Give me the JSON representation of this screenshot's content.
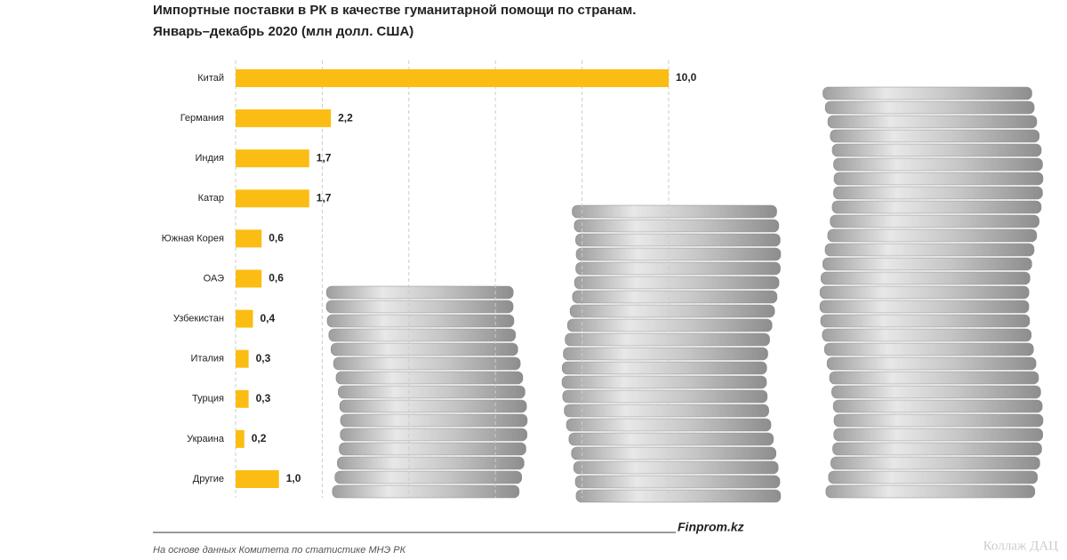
{
  "chart_data": {
    "type": "bar",
    "orientation": "horizontal",
    "title": "Импортные поставки в РК в качестве гуманитарной помощи по странам.",
    "subtitle": "Январь–декабрь 2020  (млн долл. США)",
    "categories": [
      "Китай",
      "Германия",
      "Индия",
      "Катар",
      "Южная Корея",
      "ОАЭ",
      "Узбекистан",
      "Италия",
      "Турция",
      "Украина",
      "Другие"
    ],
    "values": [
      10.0,
      2.2,
      1.7,
      1.7,
      0.6,
      0.6,
      0.4,
      0.3,
      0.3,
      0.2,
      1.0
    ],
    "value_labels": [
      "10,0",
      "2,2",
      "1,7",
      "1,7",
      "0,6",
      "0,6",
      "0,4",
      "0,3",
      "0,3",
      "0,2",
      "1,0"
    ],
    "color": "#fbbd13",
    "xlim": [
      0,
      10
    ],
    "xticks": [
      0,
      2,
      4,
      6,
      8,
      10
    ],
    "grid": true,
    "source": "Finprom.kz",
    "footnote": "На основе данных  Комитета по статистике МНЭ РК",
    "watermark": "Коллаж ДАЦ"
  }
}
